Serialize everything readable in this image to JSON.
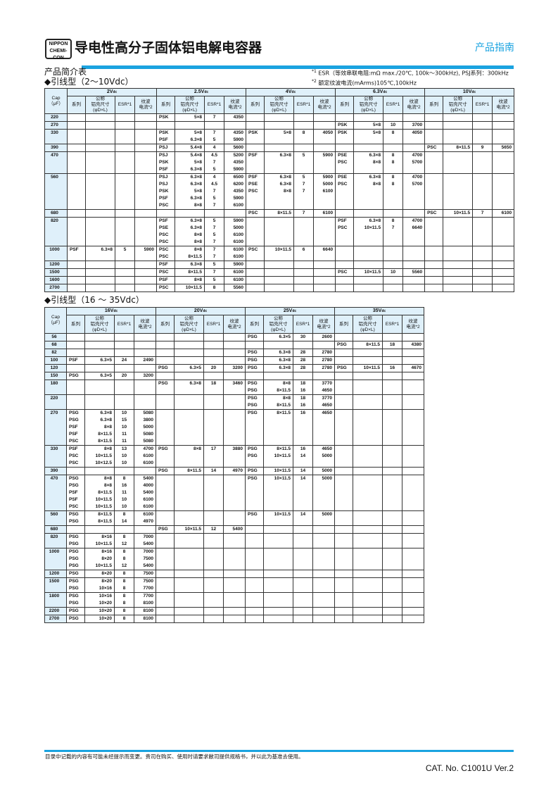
{
  "header": {
    "logo_line1": "NIPPON",
    "logo_line2": "CHEMI-CON",
    "title": "导电性高分子固体铝电解电容器",
    "guide": "产品指南",
    "accent_color": "#1aa3e0"
  },
  "section_title": "产品简介表",
  "notes": {
    "n1_mark": "*1",
    "n1": "ESR（等效串联电阻:mΩ max./20℃, 100k～300kHz), PSJ系列：300kHz",
    "n2_mark": "*2",
    "n2": "额定纹波电流(mArms)105℃,100kHz"
  },
  "columns": {
    "cap": "Cap",
    "cap_unit": "（μF）",
    "series": "系列",
    "size_1": "公称",
    "size_2": "铝壳尺寸",
    "size_3": "(φD×L)",
    "esr": "ESR*1",
    "ripple_1": "纹波",
    "ripple_2": "电流*2"
  },
  "tables": [
    {
      "heading": "◆引线型（2～10Vdc）",
      "voltages": [
        {
          "v": "2V",
          "sub": "dc"
        },
        {
          "v": "2.5V",
          "sub": "dc"
        },
        {
          "v": "4V",
          "sub": "dc"
        },
        {
          "v": "6.3V",
          "sub": "dc"
        },
        {
          "v": "10V",
          "sub": "dc"
        }
      ],
      "rows": [
        {
          "cap": "220",
          "cells": [
            [],
            [
              [
                "PSK",
                "5×8",
                "7",
                "4350"
              ]
            ],
            [],
            [],
            []
          ]
        },
        {
          "cap": "270",
          "cells": [
            [],
            [],
            [],
            [
              [
                "PSK",
                "5×8",
                "10",
                "3700"
              ]
            ],
            []
          ]
        },
        {
          "cap": "330",
          "cells": [
            [],
            [
              [
                "PSK",
                "5×8",
                "7",
                "4350"
              ],
              [
                "PSF",
                "6.3×8",
                "5",
                "5900"
              ]
            ],
            [
              [
                "PSK",
                "5×8",
                "8",
                "4050"
              ]
            ],
            [
              [
                "PSK",
                "5×8",
                "8",
                "4050"
              ]
            ],
            []
          ]
        },
        {
          "cap": "390",
          "cells": [
            [],
            [
              [
                "PSJ",
                "5.4×8",
                "4",
                "5600"
              ]
            ],
            [],
            [],
            [
              [
                "PSC",
                "8×11.5",
                "9",
                "5650"
              ]
            ]
          ]
        },
        {
          "cap": "470",
          "cells": [
            [],
            [
              [
                "PSJ",
                "5.4×8",
                "4.5",
                "5200"
              ],
              [
                "PSK",
                "5×8",
                "7",
                "4350"
              ],
              [
                "PSF",
                "6.3×8",
                "5",
                "5900"
              ]
            ],
            [
              [
                "PSF",
                "6.3×8",
                "5",
                "5900"
              ]
            ],
            [
              [
                "PSE",
                "6.3×8",
                "8",
                "4700"
              ],
              [
                "PSC",
                "8×8",
                "8",
                "5700"
              ]
            ],
            []
          ]
        },
        {
          "cap": "560",
          "cells": [
            [],
            [
              [
                "PSJ",
                "6.3×8",
                "4",
                "6500"
              ],
              [
                "PSJ",
                "6.3×8",
                "4.5",
                "6200"
              ],
              [
                "PSK",
                "5×8",
                "7",
                "4350"
              ],
              [
                "PSF",
                "6.3×8",
                "5",
                "5900"
              ],
              [
                "PSC",
                "8×8",
                "7",
                "6100"
              ]
            ],
            [
              [
                "PSF",
                "6.3×8",
                "5",
                "5900"
              ],
              [
                "PSE",
                "6.3×8",
                "7",
                "5000"
              ],
              [
                "PSC",
                "8×8",
                "7",
                "6100"
              ]
            ],
            [
              [
                "PSE",
                "6.3×8",
                "8",
                "4700"
              ],
              [
                "PSC",
                "8×8",
                "8",
                "5700"
              ]
            ],
            []
          ]
        },
        {
          "cap": "680",
          "cells": [
            [],
            [],
            [
              [
                "PSC",
                "8×11.5",
                "7",
                "6100"
              ]
            ],
            [],
            [
              [
                "PSC",
                "10×11.5",
                "7",
                "6100"
              ]
            ]
          ]
        },
        {
          "cap": "820",
          "cells": [
            [],
            [
              [
                "PSF",
                "6.3×8",
                "5",
                "5900"
              ],
              [
                "PSE",
                "6.3×8",
                "7",
                "5000"
              ],
              [
                "PSC",
                "8×8",
                "5",
                "6100"
              ],
              [
                "PSC",
                "8×8",
                "7",
                "6100"
              ]
            ],
            [],
            [
              [
                "PSF",
                "6.3×8",
                "8",
                "4700"
              ],
              [
                "PSC",
                "10×11.5",
                "7",
                "6640"
              ]
            ],
            []
          ]
        },
        {
          "cap": "1000",
          "cells": [
            [
              [
                "PSF",
                "6.3×8",
                "5",
                "5900"
              ]
            ],
            [
              [
                "PSC",
                "8×8",
                "7",
                "6100"
              ],
              [
                "PSC",
                "8×11.5",
                "7",
                "6100"
              ]
            ],
            [
              [
                "PSC",
                "10×11.5",
                "6",
                "6640"
              ]
            ],
            [],
            []
          ]
        },
        {
          "cap": "1200",
          "cells": [
            [],
            [
              [
                "PSF",
                "6.3×8",
                "5",
                "5900"
              ]
            ],
            [],
            [],
            []
          ]
        },
        {
          "cap": "1500",
          "cells": [
            [],
            [
              [
                "PSC",
                "8×11.5",
                "7",
                "6100"
              ]
            ],
            [],
            [
              [
                "PSC",
                "10×11.5",
                "10",
                "5560"
              ]
            ],
            []
          ]
        },
        {
          "cap": "1600",
          "cells": [
            [],
            [
              [
                "PSF",
                "8×8",
                "5",
                "6100"
              ]
            ],
            [],
            [],
            []
          ]
        },
        {
          "cap": "2700",
          "cells": [
            [],
            [
              [
                "PSC",
                "10×11.5",
                "8",
                "5560"
              ]
            ],
            [],
            [],
            []
          ]
        }
      ]
    },
    {
      "heading": "◆引线型（16 ～ 35Vdc）",
      "voltages": [
        {
          "v": "16V",
          "sub": "dc"
        },
        {
          "v": "20V",
          "sub": "dc"
        },
        {
          "v": "25V",
          "sub": "dc"
        },
        {
          "v": "35V",
          "sub": "dc"
        }
      ],
      "rows": [
        {
          "cap": "56",
          "cells": [
            [],
            [],
            [
              [
                "PSG",
                "6.3×5",
                "30",
                "2600"
              ]
            ],
            []
          ]
        },
        {
          "cap": "68",
          "cells": [
            [],
            [],
            [],
            [
              [
                "PSG",
                "8×11.5",
                "18",
                "4380"
              ]
            ]
          ]
        },
        {
          "cap": "82",
          "cells": [
            [],
            [],
            [
              [
                "PSG",
                "6.3×8",
                "28",
                "2780"
              ]
            ],
            []
          ]
        },
        {
          "cap": "100",
          "cells": [
            [
              [
                "PSF",
                "6.3×5",
                "24",
                "2490"
              ]
            ],
            [],
            [
              [
                "PSG",
                "6.3×8",
                "28",
                "2780"
              ]
            ],
            []
          ]
        },
        {
          "cap": "120",
          "cells": [
            [],
            [
              [
                "PSG",
                "6.3×5",
                "20",
                "3200"
              ]
            ],
            [
              [
                "PSG",
                "6.3×8",
                "28",
                "2780"
              ]
            ],
            [
              [
                "PSG",
                "10×11.5",
                "16",
                "4670"
              ]
            ]
          ]
        },
        {
          "cap": "150",
          "cells": [
            [
              [
                "PSG",
                "6.3×5",
                "20",
                "3200"
              ]
            ],
            [],
            [],
            []
          ]
        },
        {
          "cap": "180",
          "cells": [
            [],
            [
              [
                "PSG",
                "6.3×8",
                "18",
                "3460"
              ]
            ],
            [
              [
                "PSG",
                "8×8",
                "18",
                "3770"
              ],
              [
                "PSG",
                "8×11.5",
                "16",
                "4650"
              ]
            ],
            []
          ]
        },
        {
          "cap": "220",
          "cells": [
            [],
            [],
            [
              [
                "PSG",
                "8×8",
                "18",
                "3770"
              ],
              [
                "PSG",
                "8×11.5",
                "16",
                "4650"
              ]
            ],
            []
          ]
        },
        {
          "cap": "270",
          "cells": [
            [
              [
                "PSG",
                "6.3×8",
                "10",
                "5080"
              ],
              [
                "PSG",
                "6.3×8",
                "15",
                "3800"
              ],
              [
                "PSF",
                "8×8",
                "10",
                "5000"
              ],
              [
                "PSF",
                "8×11.5",
                "11",
                "5080"
              ],
              [
                "PSC",
                "8×11.5",
                "11",
                "5080"
              ]
            ],
            [],
            [
              [
                "PSG",
                "8×11.5",
                "16",
                "4650"
              ]
            ],
            []
          ]
        },
        {
          "cap": "330",
          "cells": [
            [
              [
                "PSF",
                "8×8",
                "13",
                "4700"
              ],
              [
                "PSC",
                "10×11.5",
                "10",
                "6100"
              ],
              [
                "PSC",
                "10×12.5",
                "10",
                "6100"
              ]
            ],
            [
              [
                "PSG",
                "8×8",
                "17",
                "3880"
              ]
            ],
            [
              [
                "PSG",
                "8×11.5",
                "16",
                "4650"
              ],
              [
                "PSG",
                "10×11.5",
                "14",
                "5000"
              ]
            ],
            []
          ]
        },
        {
          "cap": "390",
          "cells": [
            [],
            [
              [
                "PSG",
                "8×11.5",
                "14",
                "4970"
              ]
            ],
            [
              [
                "PSG",
                "10×11.5",
                "14",
                "5000"
              ]
            ],
            []
          ]
        },
        {
          "cap": "470",
          "cells": [
            [
              [
                "PSG",
                "8×8",
                "8",
                "5400"
              ],
              [
                "PSG",
                "8×8",
                "16",
                "4000"
              ],
              [
                "PSF",
                "8×11.5",
                "11",
                "5400"
              ],
              [
                "PSF",
                "10×11.5",
                "10",
                "6100"
              ],
              [
                "PSC",
                "10×11.5",
                "10",
                "6100"
              ]
            ],
            [],
            [
              [
                "PSG",
                "10×11.5",
                "14",
                "5000"
              ]
            ],
            []
          ]
        },
        {
          "cap": "560",
          "cells": [
            [
              [
                "PSG",
                "8×11.5",
                "8",
                "6100"
              ],
              [
                "PSG",
                "8×11.5",
                "14",
                "4970"
              ]
            ],
            [],
            [
              [
                "PSG",
                "10×11.5",
                "14",
                "5000"
              ]
            ],
            []
          ]
        },
        {
          "cap": "680",
          "cells": [
            [],
            [
              [
                "PSG",
                "10×11.5",
                "12",
                "5400"
              ]
            ],
            [],
            []
          ]
        },
        {
          "cap": "820",
          "cells": [
            [
              [
                "PSG",
                "8×16",
                "8",
                "7000"
              ],
              [
                "PSG",
                "10×11.5",
                "12",
                "5400"
              ]
            ],
            [],
            [],
            []
          ]
        },
        {
          "cap": "1000",
          "cells": [
            [
              [
                "PSG",
                "8×16",
                "8",
                "7000"
              ],
              [
                "PSG",
                "8×20",
                "8",
                "7500"
              ],
              [
                "PSG",
                "10×11.5",
                "12",
                "5400"
              ]
            ],
            [],
            [],
            []
          ]
        },
        {
          "cap": "1200",
          "cells": [
            [
              [
                "PSG",
                "8×20",
                "8",
                "7500"
              ]
            ],
            [],
            [],
            []
          ]
        },
        {
          "cap": "1500",
          "cells": [
            [
              [
                "PSG",
                "8×20",
                "8",
                "7500"
              ],
              [
                "PSG",
                "10×16",
                "8",
                "7700"
              ]
            ],
            [],
            [],
            []
          ]
        },
        {
          "cap": "1800",
          "cells": [
            [
              [
                "PSG",
                "10×16",
                "8",
                "7700"
              ],
              [
                "PSG",
                "10×20",
                "8",
                "8100"
              ]
            ],
            [],
            [],
            []
          ]
        },
        {
          "cap": "2200",
          "cells": [
            [
              [
                "PSG",
                "10×20",
                "8",
                "8100"
              ]
            ],
            [],
            [],
            []
          ]
        },
        {
          "cap": "2700",
          "cells": [
            [
              [
                "PSG",
                "10×20",
                "8",
                "8100"
              ]
            ],
            [],
            [],
            []
          ]
        }
      ]
    }
  ],
  "footer": {
    "disclaimer": "目录中记载的内容有可能未经提示而变更。贵司在购买、使用时请要求敝司提供规格书，并以此为基准去使用。",
    "catalog": "CAT. No. C1001U Ver.2"
  }
}
